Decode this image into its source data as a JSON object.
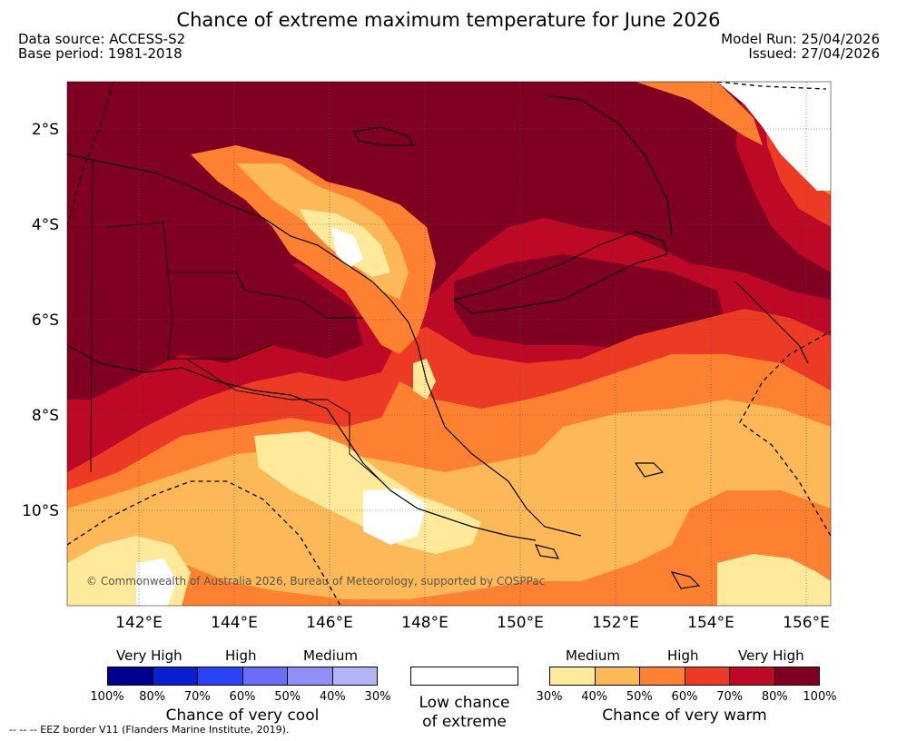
{
  "header": {
    "title": "Chance of extreme maximum temperature for June 2026",
    "data_source": "Data source: ACCESS-S2",
    "base_period": "Base period: 1981-2018",
    "model_run": "Model Run: 25/04/2026",
    "issued": "Issued: 27/04/2026"
  },
  "map": {
    "lat_labels": [
      "2°S",
      "4°S",
      "6°S",
      "8°S",
      "10°S"
    ],
    "lon_labels": [
      "142°E",
      "144°E",
      "146°E",
      "148°E",
      "150°E",
      "152°E",
      "154°E",
      "156°E"
    ],
    "copyright": "© Commonwealth of Australia 2026, Bureau of Meteorology, supported by COSPPac"
  },
  "legend": {
    "cool": {
      "headers": [
        "Very High",
        "High",
        "Medium"
      ],
      "colors": [
        "#00008f",
        "#0a1fcf",
        "#2a43f5",
        "#6a6cf6",
        "#8f8ff5",
        "#b3b3fa"
      ],
      "ticks": [
        "100%",
        "80%",
        "70%",
        "60%",
        "50%",
        "40%",
        "30%"
      ],
      "caption": "Chance of very cool"
    },
    "low": {
      "caption_line1": "Low chance",
      "caption_line2": "of extreme"
    },
    "warm": {
      "headers": [
        "Medium",
        "High",
        "Very High"
      ],
      "colors": [
        "#feea9a",
        "#fdb957",
        "#fd8130",
        "#ed3a24",
        "#bd0826",
        "#800022"
      ],
      "ticks": [
        "30%",
        "40%",
        "50%",
        "60%",
        "70%",
        "80%",
        "100%"
      ],
      "caption": "Chance of very warm"
    }
  },
  "footer": {
    "eez_note": "--  --  -- EEZ border V11 (Flanders Marine Institute, 2019)."
  }
}
